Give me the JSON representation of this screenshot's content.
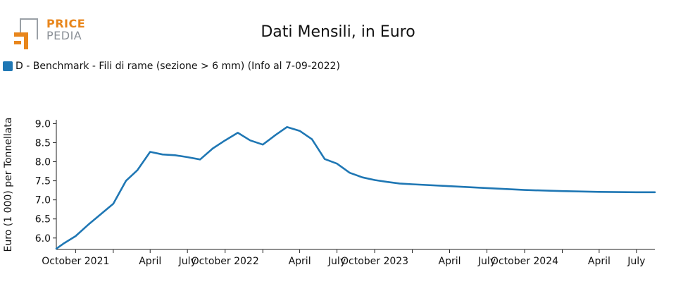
{
  "header": {
    "logo_top": "PRICE",
    "logo_bottom": "PEDIA",
    "title": "Dati Mensili, in Euro"
  },
  "colors": {
    "series": "#1f77b4",
    "logo_orange": "#e8861c",
    "logo_gray": "#8a8f96"
  },
  "chart_data": {
    "type": "line",
    "title": "Dati Mensili, in Euro",
    "ylabel": "Euro (1 000) per Tonnellata",
    "xlabel": "",
    "legend_position": "top-left",
    "grid": false,
    "xlim": [
      "2021-08-15",
      "2025-08-15"
    ],
    "ylim": [
      5.7,
      9.1
    ],
    "y_ticks": [
      6.0,
      6.5,
      7.0,
      7.5,
      8.0,
      8.5,
      9.0
    ],
    "y_tick_labels": [
      "6.0",
      "6.5",
      "7.0",
      "7.5",
      "8.0",
      "8.5",
      "9.0"
    ],
    "x_ticks": [
      {
        "date": "2021-10-01",
        "label": "October 2021"
      },
      {
        "date": "2022-01-01",
        "label": ""
      },
      {
        "date": "2022-04-01",
        "label": "April"
      },
      {
        "date": "2022-07-01",
        "label": "July"
      },
      {
        "date": "2022-10-01",
        "label": "October 2022"
      },
      {
        "date": "2023-01-01",
        "label": ""
      },
      {
        "date": "2023-04-01",
        "label": "April"
      },
      {
        "date": "2023-07-01",
        "label": "July"
      },
      {
        "date": "2023-10-01",
        "label": "October 2023"
      },
      {
        "date": "2024-01-01",
        "label": ""
      },
      {
        "date": "2024-04-01",
        "label": "April"
      },
      {
        "date": "2024-07-01",
        "label": "July"
      },
      {
        "date": "2024-10-01",
        "label": "October 2024"
      },
      {
        "date": "2025-01-01",
        "label": ""
      },
      {
        "date": "2025-04-01",
        "label": "April"
      },
      {
        "date": "2025-07-01",
        "label": "July"
      }
    ],
    "series": [
      {
        "name": "D - Benchmark - Fili di rame (sezione > 6 mm) (Info al 7-09-2022)",
        "color": "#1f77b4",
        "x": [
          "2021-08-15",
          "2021-09-01",
          "2021-10-01",
          "2021-11-01",
          "2021-12-01",
          "2022-01-01",
          "2022-02-01",
          "2022-03-01",
          "2022-04-01",
          "2022-05-01",
          "2022-06-01",
          "2022-07-01",
          "2022-08-01",
          "2022-09-01",
          "2022-10-01",
          "2022-11-01",
          "2022-12-01",
          "2023-01-01",
          "2023-02-01",
          "2023-03-01",
          "2023-04-01",
          "2023-05-01",
          "2023-06-01",
          "2023-07-01",
          "2023-08-01",
          "2023-09-01",
          "2023-10-01",
          "2023-11-01",
          "2023-12-01",
          "2024-01-01",
          "2024-04-01",
          "2024-07-01",
          "2024-10-01",
          "2025-01-01",
          "2025-04-01",
          "2025-07-01",
          "2025-08-15"
        ],
        "y": [
          5.72,
          5.85,
          6.05,
          6.35,
          6.62,
          6.9,
          7.5,
          7.78,
          8.26,
          8.19,
          8.17,
          8.12,
          8.06,
          8.35,
          8.56,
          8.76,
          8.56,
          8.45,
          8.7,
          8.91,
          8.81,
          8.59,
          8.07,
          7.95,
          7.71,
          7.59,
          7.52,
          7.47,
          7.43,
          7.41,
          7.36,
          7.31,
          7.26,
          7.23,
          7.21,
          7.2,
          7.2
        ]
      }
    ]
  }
}
